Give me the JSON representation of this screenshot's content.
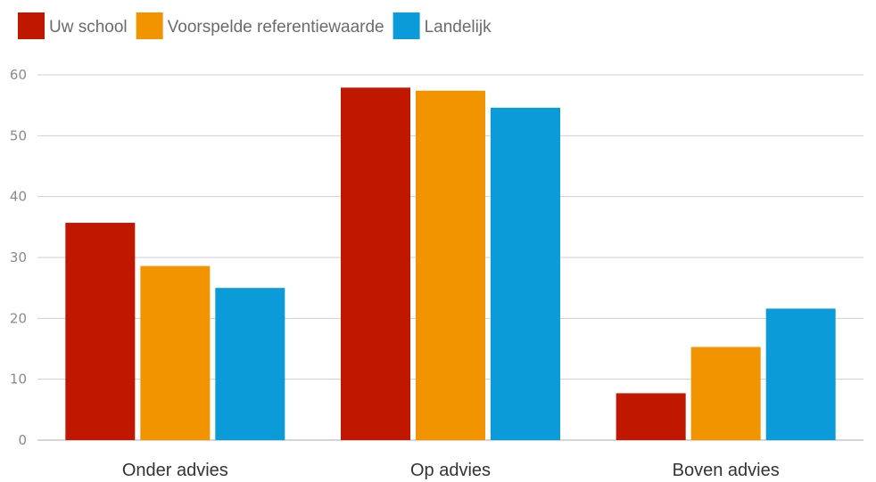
{
  "chart_data": {
    "type": "bar",
    "title": "",
    "xlabel": "",
    "ylabel": "",
    "categories": [
      "Onder advies",
      "Op advies",
      "Boven advies"
    ],
    "series": [
      {
        "name": "Uw school",
        "color": "#c01700",
        "values": [
          35.7,
          57.9,
          7.7
        ]
      },
      {
        "name": "Voorspelde referentiewaarde",
        "color": "#f29400",
        "values": [
          28.6,
          57.4,
          15.3
        ]
      },
      {
        "name": "Landelijk",
        "color": "#0b9bd8",
        "values": [
          25.0,
          54.6,
          21.6
        ]
      }
    ],
    "ylim": [
      0,
      60
    ],
    "yticks": [
      0,
      10,
      20,
      30,
      40,
      50,
      60
    ],
    "grid": true,
    "legend_position": "top-left"
  }
}
